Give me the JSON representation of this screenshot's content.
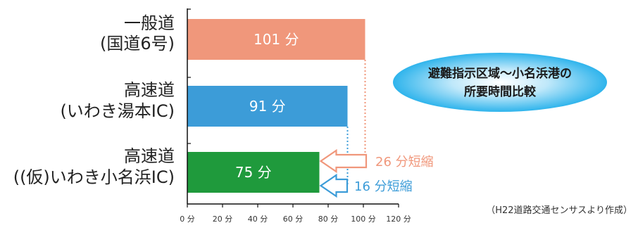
{
  "chart_data": {
    "type": "bar",
    "orientation": "horizontal",
    "categories": [
      [
        "一般道",
        "(国道6号)"
      ],
      [
        "高速道",
        "(いわき湯本IC)"
      ],
      [
        "高速道",
        "((仮)いわき小名浜IC)"
      ]
    ],
    "values": [
      101,
      91,
      75
    ],
    "value_labels": [
      "101 分",
      "91 分",
      "75 分"
    ],
    "bar_colors": [
      "#F0977B",
      "#3C9CD8",
      "#1F9A3C"
    ],
    "xlim": [
      0,
      120
    ],
    "xticks": [
      0,
      20,
      40,
      60,
      80,
      100,
      120
    ],
    "xtick_labels": [
      "0 分",
      "20 分",
      "40 分",
      "60 分",
      "80 分",
      "100 分",
      "120 分"
    ],
    "annotations": [
      {
        "from_value": 101,
        "to_value": 75,
        "text": "26 分短縮",
        "color": "#F0977B"
      },
      {
        "from_value": 91,
        "to_value": 75,
        "text": "16 分短縮",
        "color": "#3C9CD8"
      }
    ],
    "callout": [
      "避難指示区域～小名浜港の",
      "所要時間比較"
    ],
    "source": "（H22道路交通センサスより作成）",
    "grid": false,
    "legend": "none"
  }
}
